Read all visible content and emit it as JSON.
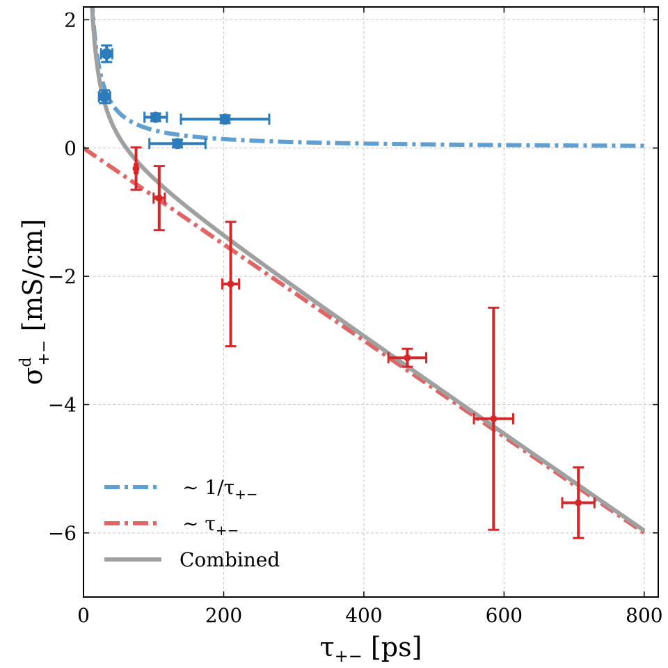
{
  "chart_data": {
    "type": "scatter",
    "xlabel": "τ",
    "xlabel_sub": "+−",
    "xlabel_unit": " [ps]",
    "ylabel": "σ",
    "ylabel_sup": "d",
    "ylabel_sub": "+−",
    "ylabel_unit": " [mS/cm]",
    "xlim": [
      0,
      820
    ],
    "ylim": [
      -7,
      2.2
    ],
    "xticks": [
      0,
      200,
      400,
      600,
      800
    ],
    "yticks": [
      2,
      0,
      -2,
      -4,
      -6
    ],
    "ytick_labels": [
      "2",
      "0",
      "−2",
      "−4",
      "−6"
    ],
    "grid": true,
    "legend_position": "bottom-left",
    "colors": {
      "blue_points": "#2c7bba",
      "blue_fit": "#5f9fd2",
      "red_points": "#d62728",
      "red_fit": "#e06666",
      "combined": "#a0a0a0"
    },
    "series": [
      {
        "name": "blue data",
        "points": [
          {
            "x": 33,
            "y": 1.47,
            "xerr": 8,
            "yerr": 0.13
          },
          {
            "x": 30,
            "y": 0.8,
            "xerr": 8,
            "yerr": 0.1
          },
          {
            "x": 103,
            "y": 0.48,
            "xerr": 16,
            "yerr": 0.06
          },
          {
            "x": 202,
            "y": 0.45,
            "xerr": 63,
            "yerr": 0.06
          },
          {
            "x": 134,
            "y": 0.07,
            "xerr": 40,
            "yerr": 0.06
          }
        ]
      },
      {
        "name": "red data",
        "points": [
          {
            "x": 75,
            "y": -0.32,
            "xerr": 2,
            "yerr": 0.33
          },
          {
            "x": 108,
            "y": -0.78,
            "xerr": 8,
            "yerr": 0.5
          },
          {
            "x": 210,
            "y": -2.12,
            "xerr": 12,
            "yerr": 0.97
          },
          {
            "x": 462,
            "y": -3.27,
            "xerr": 27,
            "yerr": 0.14
          },
          {
            "x": 585,
            "y": -4.22,
            "xerr": 28,
            "yerr": 1.73
          },
          {
            "x": 706,
            "y": -5.53,
            "xerr": 23,
            "yerr": 0.55
          }
        ]
      }
    ],
    "fits": [
      {
        "name": "~ 1/τ+−",
        "model": "inverse",
        "a": 28
      },
      {
        "name": "~ τ+−",
        "model": "linear",
        "b": -0.0075
      },
      {
        "name": "Combined",
        "model": "combined",
        "a": 28,
        "b": -0.0075
      }
    ],
    "legend": [
      {
        "label_prefix": "∼ 1/τ",
        "label_sub": "+−"
      },
      {
        "label_prefix": "∼ τ",
        "label_sub": "+−"
      },
      {
        "label_prefix": "Combined",
        "label_sub": ""
      }
    ]
  }
}
